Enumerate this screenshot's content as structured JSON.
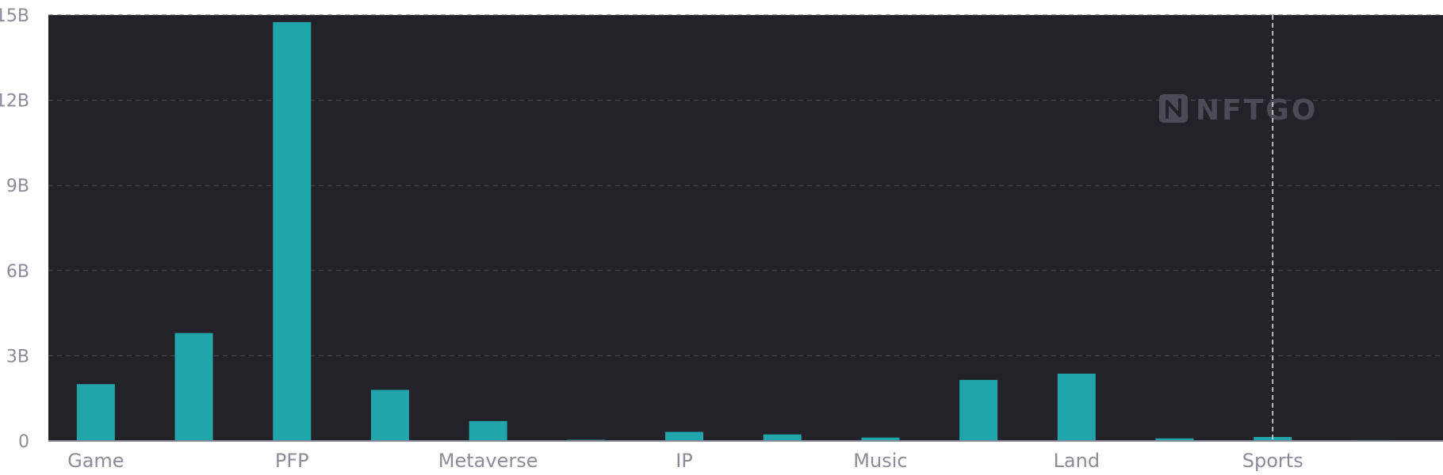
{
  "colors": {
    "plot_background": "#232229",
    "bar": "#1fa5aa",
    "grid": "#4a4a55",
    "axis": "#8a8c99",
    "crosshair": "#e6e6e6",
    "tick_text": "#8a8c99",
    "watermark": "#4a4b55"
  },
  "watermark": {
    "text": "NFTGO",
    "icon": "nftgo-logo-icon"
  },
  "chart_data": {
    "type": "bar",
    "title": "",
    "xlabel": "",
    "ylabel": "",
    "ylim": [
      0,
      15000000000
    ],
    "yticks": [
      {
        "value": 0,
        "label": "0"
      },
      {
        "value": 3000000000,
        "label": "3B"
      },
      {
        "value": 6000000000,
        "label": "6B"
      },
      {
        "value": 9000000000,
        "label": "9B"
      },
      {
        "value": 12000000000,
        "label": "12B"
      },
      {
        "value": 15000000000,
        "label": "15B"
      }
    ],
    "grid": true,
    "legend": "none",
    "categories": [
      "Game",
      "",
      "PFP",
      "",
      "Metaverse",
      "",
      "IP",
      "",
      "Music",
      "",
      "Land",
      "",
      "Sports",
      ""
    ],
    "values": [
      2000000000,
      3800000000,
      14750000000,
      1800000000,
      700000000,
      40000000,
      320000000,
      230000000,
      120000000,
      2150000000,
      2370000000,
      90000000,
      140000000,
      30000000
    ],
    "highlight_category_index": 12
  }
}
